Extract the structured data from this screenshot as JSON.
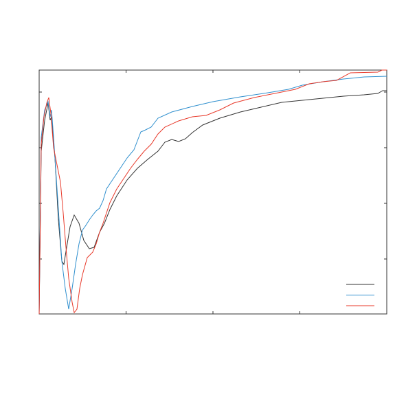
{
  "chart_data": {
    "type": "line",
    "xlim": [
      0,
      506
    ],
    "xticks": [
      0,
      126.5,
      253,
      379.5,
      506
    ],
    "ylim": [
      0,
      355
    ],
    "yticks": [
      0,
      80,
      161,
      242,
      323
    ],
    "legend": "lower right",
    "series": [
      {
        "color": "#333333",
        "x": [
          0,
          3,
          8,
          13,
          16,
          18,
          23,
          28,
          33,
          36,
          40,
          45,
          51,
          58,
          65,
          73,
          80,
          88,
          95,
          103,
          113,
          128,
          143,
          158,
          173,
          183,
          193,
          203,
          213,
          223,
          238,
          263,
          293,
          323,
          353,
          383,
          413,
          443,
          473,
          493,
          500,
          506
        ],
        "values": [
          0,
          237,
          282,
          307,
          282,
          287,
          227,
          137,
          77,
          72,
          97,
          127,
          144,
          132,
          107,
          95,
          97,
          119,
          132,
          152,
          172,
          195,
          212,
          225,
          237,
          250,
          254,
          251,
          255,
          264,
          275,
          285,
          294,
          301,
          308,
          311,
          314,
          317,
          319,
          321,
          325,
          325
        ]
      },
      {
        "color": "#2f8fce",
        "x": [
          0,
          3,
          8,
          13,
          16,
          18,
          21,
          25,
          29,
          33,
          38,
          43,
          48,
          53,
          58,
          63,
          68,
          73,
          78,
          83,
          88,
          93,
          98,
          108,
          118,
          128,
          138,
          143,
          148,
          153,
          163,
          173,
          193,
          223,
          253,
          293,
          333,
          363,
          383,
          413,
          443,
          473,
          506
        ],
        "values": [
          0,
          257,
          297,
          309,
          287,
          297,
          257,
          197,
          137,
          77,
          37,
          7,
          37,
          72,
          102,
          122,
          129,
          137,
          144,
          150,
          154,
          165,
          182,
          197,
          212,
          227,
          239,
          252,
          265,
          267,
          272,
          285,
          294,
          302,
          309,
          316,
          322,
          327,
          333,
          338,
          342,
          345,
          346
        ]
      },
      {
        "color": "#e8392a",
        "x": [
          0,
          3,
          7,
          11,
          14,
          17,
          21,
          27,
          31,
          35,
          39,
          43,
          48,
          51,
          55,
          59,
          63,
          70,
          78,
          83,
          88,
          93,
          103,
          113,
          123,
          133,
          143,
          153,
          163,
          173,
          183,
          203,
          223,
          243,
          263,
          283,
          313,
          343,
          373,
          393,
          413,
          433,
          453,
          493,
          499,
          506
        ],
        "values": [
          0,
          247,
          287,
          307,
          315,
          292,
          242,
          212,
          192,
          147,
          97,
          52,
          17,
          2,
          7,
          37,
          57,
          82,
          90,
          102,
          119,
          132,
          162,
          182,
          197,
          212,
          225,
          237,
          247,
          262,
          272,
          281,
          287,
          289,
          297,
          307,
          315,
          321,
          327,
          335,
          338,
          340,
          351,
          352,
          355,
          355
        ]
      }
    ]
  }
}
